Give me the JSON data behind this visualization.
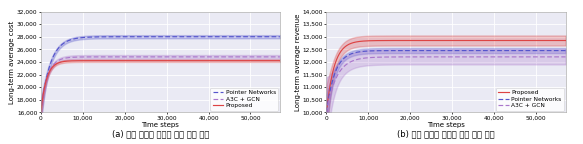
{
  "fig_width": 5.83,
  "fig_height": 1.44,
  "dpi": 100,
  "subplot_a": {
    "title": "(a) 제안 기법의 장기적 비용 비교 결과",
    "ylabel": "Long-term average cost",
    "xlabel": "Time steps",
    "ylim": [
      16000,
      32000
    ],
    "xlim": [
      0,
      57000
    ],
    "yticks": [
      16000,
      18000,
      20000,
      22000,
      24000,
      26000,
      28000,
      30000,
      32000
    ],
    "xticks": [
      0,
      10000,
      20000,
      30000,
      40000,
      50000
    ],
    "lines": {
      "pointer": {
        "color": "#5555cc",
        "style": "--",
        "label": "Pointer Networks",
        "start": 16000,
        "end": 28000,
        "rise_speed": 0.00045,
        "std_start": 1800,
        "std_end": 250
      },
      "a3c": {
        "color": "#aa77cc",
        "style": "--",
        "label": "A3C + GCN",
        "start": 16000,
        "end": 24800,
        "rise_speed": 0.00065,
        "std_start": 1400,
        "std_end": 300
      },
      "proposed": {
        "color": "#dd4444",
        "style": "-",
        "label": "Proposed",
        "start": 16000,
        "end": 24200,
        "rise_speed": 0.00075,
        "std_start": 900,
        "std_end": 200
      }
    },
    "legend_order": [
      "pointer",
      "a3c",
      "proposed"
    ]
  },
  "subplot_b": {
    "title": "(b) 제안 기법의 장기적 이득 비교 결과",
    "ylabel": "Long-term average revenue",
    "xlabel": "Time steps",
    "ylim": [
      10000,
      14000
    ],
    "xlim": [
      0,
      57000
    ],
    "yticks": [
      10000,
      10500,
      11000,
      11500,
      12000,
      12500,
      13000,
      13500,
      14000
    ],
    "xticks": [
      0,
      10000,
      20000,
      30000,
      40000,
      50000
    ],
    "lines": {
      "proposed": {
        "color": "#dd4444",
        "style": "-",
        "label": "Proposed",
        "start": 10000,
        "end": 12850,
        "rise_speed": 0.00055,
        "std_start": 900,
        "std_end": 200
      },
      "pointer": {
        "color": "#5555cc",
        "style": "--",
        "label": "Pointer Networks",
        "start": 10000,
        "end": 12450,
        "rise_speed": 0.0005,
        "std_start": 600,
        "std_end": 100
      },
      "a3c": {
        "color": "#aa77cc",
        "style": "--",
        "label": "A3C + GCN",
        "start": 10000,
        "end": 12200,
        "rise_speed": 0.00042,
        "std_start": 1100,
        "std_end": 300
      }
    },
    "legend_order": [
      "proposed",
      "pointer",
      "a3c"
    ]
  },
  "background_color": "#eaeaf4",
  "grid_color": "white",
  "label_fontsize": 5.0,
  "tick_fontsize": 4.2,
  "legend_fontsize": 4.2,
  "title_fontsize": 6.0,
  "linewidth": 0.85,
  "alpha_fill": 0.28
}
